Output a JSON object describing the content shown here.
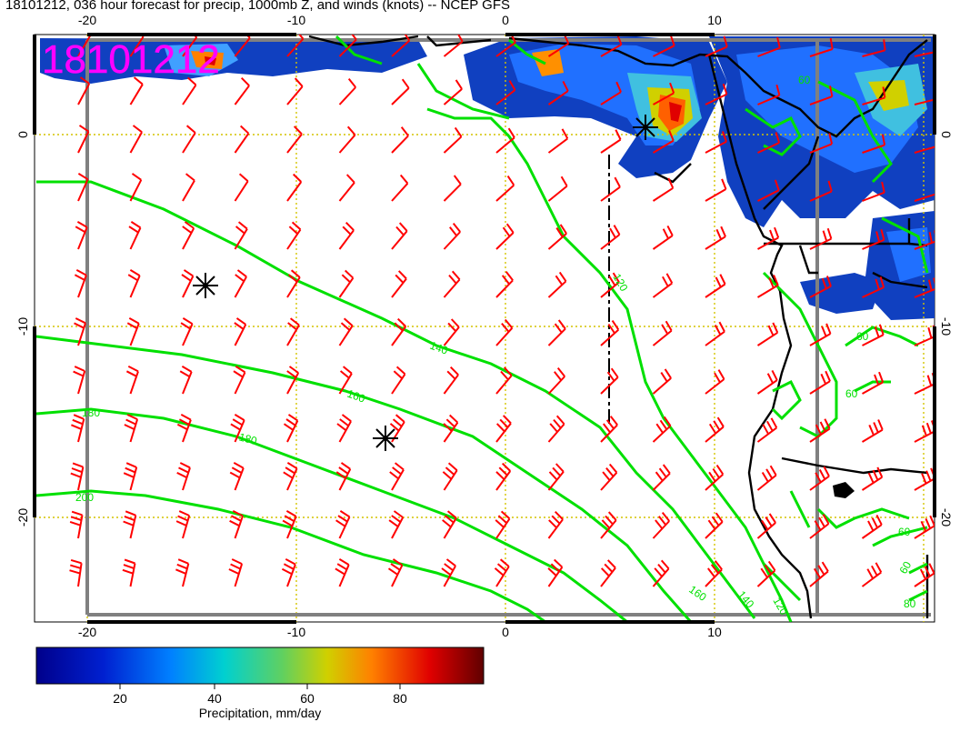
{
  "title": "18101212, 036 hour forecast for precip, 1000mb Z, and winds (knots) -- NCEP GFS",
  "stamp": "18101212",
  "x_ticks_top": [
    "-20",
    "-10",
    "0",
    "10"
  ],
  "x_ticks_bottom": [
    "-20",
    "-10",
    "0",
    "10"
  ],
  "y_ticks_left": [
    "0",
    "-10",
    "-20"
  ],
  "y_ticks_right": [
    "0",
    "-10",
    "-20"
  ],
  "contour_labels": [
    "120",
    "140",
    "160",
    "180",
    "200",
    "180",
    "160",
    "140",
    "120",
    "60",
    "60",
    "60",
    "60",
    "80",
    "60"
  ],
  "colorbar": {
    "label": "Precipitation, mm/day",
    "ticks": [
      "20",
      "40",
      "60",
      "80"
    ]
  },
  "colors": {
    "contour": "#00e000",
    "wind_barb": "#ff0000",
    "grid": "#d4c400",
    "frame": "#808080",
    "stamp": "#ff00ff"
  },
  "icons": [
    "storm-center-icon",
    "storm-center-icon",
    "storm-center-icon"
  ]
}
